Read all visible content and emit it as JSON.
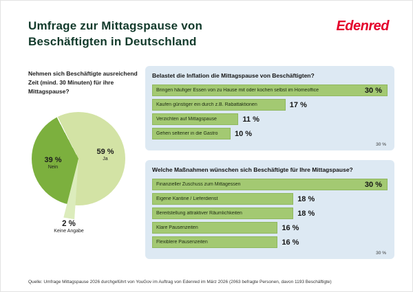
{
  "header": {
    "title": "Umfrage zur Mittagspause von Beschäftigten in Deutschland",
    "logo_text": "Edenred"
  },
  "pie": {
    "question": "Nehmen sich Beschäftigte ausreichend Zeit (mind. 30 Minuten) für ihre Mittagspause?",
    "slices": [
      {
        "label": "Ja",
        "value": 59,
        "display": "59 %",
        "color": "#d3e3a5"
      },
      {
        "label": "Keine Angabe",
        "value": 2,
        "display": "2 %",
        "color": "#dcecbc"
      },
      {
        "label": "Nein",
        "value": 39,
        "display": "39 %",
        "color": "#7cb03e"
      }
    ]
  },
  "panels": [
    {
      "title": "Belastet die Inflation die Mittagspause von Beschäftigten?",
      "max": 30,
      "axis_label": "30 %",
      "bars": [
        {
          "label": "Bringen häufiger Essen von zu Hause mit oder kochen selbst im Homeoffice",
          "value": 30,
          "display": "30 %"
        },
        {
          "label": "Kaufen günstiger ein durch z.B. Rabattaktionen",
          "value": 17,
          "display": "17 %"
        },
        {
          "label": "Verzichten auf Mittagspause",
          "value": 11,
          "display": "11 %"
        },
        {
          "label": "Gehen seltener in die Gastro",
          "value": 10,
          "display": "10 %"
        }
      ]
    },
    {
      "title": "Welche Maßnahmen wünschen sich Beschäftigte für Ihre Mittagspause?",
      "max": 30,
      "axis_label": "30 %",
      "bars": [
        {
          "label": "Finanzieller Zuschuss zum Mittagessen",
          "value": 30,
          "display": "30 %"
        },
        {
          "label": "Eigene Kantine / Lieferdienst",
          "value": 18,
          "display": "18 %"
        },
        {
          "label": "Bereitstellung attraktiver Räumlichkeiten",
          "value": 18,
          "display": "18 %"
        },
        {
          "label": "Klare Pausenzeiten",
          "value": 16,
          "display": "16 %"
        },
        {
          "label": "Flexiblere Pausenzeiten",
          "value": 16,
          "display": "16 %"
        }
      ]
    }
  ],
  "footer": {
    "source": "Quelle: Umfrage Mittagspause 2026 durchgeführt von YouGov im Auftrag von Edenred im März 2026 (2063 befragte Personen, davon 1193 Beschäftigte)"
  },
  "colors": {
    "title": "#123a2b",
    "logo_red": "#e4002b",
    "panel_bg": "#dde9f3",
    "bar_green": "#a3c972",
    "pie_ja": "#d3e3a5",
    "pie_nein": "#7cb03e",
    "pie_keine_angabe": "#dcecbc"
  },
  "chart_data": [
    {
      "type": "pie",
      "title": "Nehmen sich Beschäftigte ausreichend Zeit (mind. 30 Minuten) für ihre Mittagspause?",
      "labels": [
        "Ja",
        "Nein",
        "Keine Angabe"
      ],
      "values": [
        59,
        39,
        2
      ]
    },
    {
      "type": "bar",
      "orientation": "horizontal",
      "title": "Belastet die Inflation die Mittagspause von Beschäftigten?",
      "categories": [
        "Bringen häufiger Essen von zu Hause mit oder kochen selbst im Homeoffice",
        "Kaufen günstiger ein durch z.B. Rabattaktionen",
        "Verzichten auf Mittagspause",
        "Gehen seltener in die Gastro"
      ],
      "values": [
        30,
        17,
        11,
        10
      ],
      "xlim": [
        0,
        30
      ],
      "xlabel": "",
      "ylabel": "",
      "grid": false,
      "legend": false
    },
    {
      "type": "bar",
      "orientation": "horizontal",
      "title": "Welche Maßnahmen wünschen sich Beschäftigte für Ihre Mittagspause?",
      "categories": [
        "Finanzieller Zuschuss zum Mittagessen",
        "Eigene Kantine / Lieferdienst",
        "Bereitstellung attraktiver Räumlichkeiten",
        "Klare Pausenzeiten",
        "Flexiblere Pausenzeiten"
      ],
      "values": [
        30,
        18,
        18,
        16,
        16
      ],
      "xlim": [
        0,
        30
      ],
      "xlabel": "",
      "ylabel": "",
      "grid": false,
      "legend": false
    }
  ]
}
